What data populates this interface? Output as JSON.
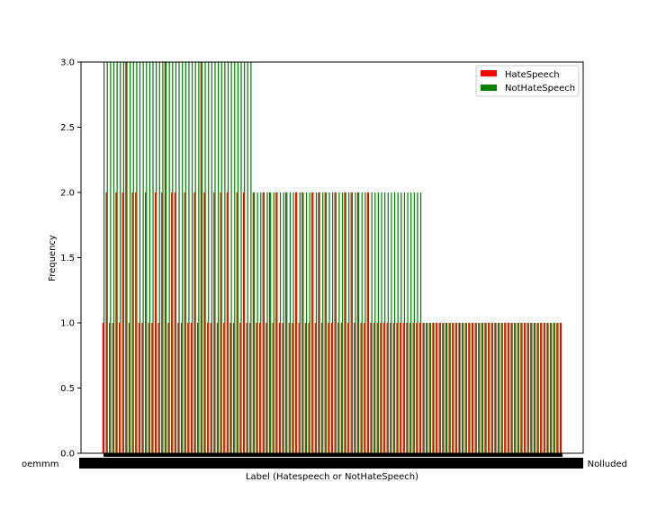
{
  "chart_data": {
    "type": "bar",
    "xlabel": "Label (Hatespeech or NotHateSpeech)",
    "ylabel": "Frequency",
    "ylim": [
      0,
      3.0
    ],
    "yticks": [
      "0.0",
      "0.5",
      "1.0",
      "1.5",
      "2.0",
      "2.5",
      "3.0"
    ],
    "ytick_values": [
      0,
      0.5,
      1.0,
      1.5,
      2.0,
      2.5,
      3.0
    ],
    "legend_position": "top-right",
    "grid": false,
    "xtick_labels_edge": {
      "left": "oemmm",
      "right": "Nolluded"
    },
    "series": [
      {
        "name": "HateSpeech",
        "color": "#ff0000"
      },
      {
        "name": "NotHateSpeech",
        "color": "#008000"
      }
    ],
    "category_count": 141,
    "hatespeech_values": [
      1,
      2,
      1,
      1,
      2,
      1,
      2,
      3,
      1,
      2,
      2,
      1,
      1,
      2,
      1,
      1,
      2,
      1,
      2,
      3,
      1,
      2,
      2,
      1,
      1,
      2,
      1,
      1,
      2,
      1,
      3,
      2,
      1,
      1,
      2,
      1,
      2,
      1,
      2,
      1,
      1,
      2,
      1,
      2,
      1,
      1,
      2,
      1,
      1,
      2,
      1,
      2,
      1,
      2,
      1,
      1,
      2,
      1,
      1,
      2,
      1,
      2,
      1,
      1,
      2,
      1,
      2,
      1,
      2,
      1,
      1,
      2,
      1,
      1,
      2,
      1,
      2,
      1,
      2,
      1,
      1,
      2,
      1,
      1,
      1,
      1,
      1,
      1,
      1,
      1,
      1,
      1,
      1,
      1,
      1,
      1,
      1,
      1,
      1,
      1,
      1,
      1,
      1,
      1,
      1,
      1,
      1,
      1,
      1,
      1,
      1,
      1,
      1,
      1,
      1,
      1,
      1,
      1,
      1,
      1,
      1,
      1,
      1,
      1,
      1,
      1,
      1,
      1,
      1,
      1,
      1,
      1,
      1,
      1,
      1,
      1,
      1,
      1,
      1,
      1,
      1
    ],
    "nothatespeech_values": [
      3,
      3,
      3,
      3,
      3,
      3,
      3,
      3,
      3,
      3,
      3,
      3,
      3,
      3,
      3,
      3,
      3,
      3,
      3,
      3,
      3,
      3,
      3,
      3,
      3,
      3,
      3,
      3,
      3,
      3,
      3,
      3,
      3,
      3,
      3,
      3,
      3,
      3,
      3,
      3,
      3,
      3,
      3,
      3,
      3,
      3,
      2,
      2,
      2,
      2,
      2,
      2,
      2,
      2,
      2,
      2,
      2,
      2,
      2,
      2,
      2,
      2,
      2,
      2,
      2,
      2,
      2,
      2,
      2,
      2,
      2,
      2,
      2,
      2,
      2,
      2,
      2,
      2,
      2,
      2,
      2,
      2,
      2,
      2,
      2,
      2,
      2,
      2,
      2,
      2,
      2,
      2,
      2,
      2,
      2,
      2,
      2,
      2,
      1,
      1,
      1,
      1,
      1,
      1,
      1,
      1,
      1,
      1,
      1,
      1,
      1,
      1,
      1,
      1,
      1,
      1,
      1,
      1,
      1,
      1,
      1,
      1,
      1,
      1,
      1,
      1,
      1,
      1,
      1,
      1,
      1,
      1,
      1,
      1,
      1,
      1,
      1,
      1,
      1,
      1,
      1
    ]
  }
}
